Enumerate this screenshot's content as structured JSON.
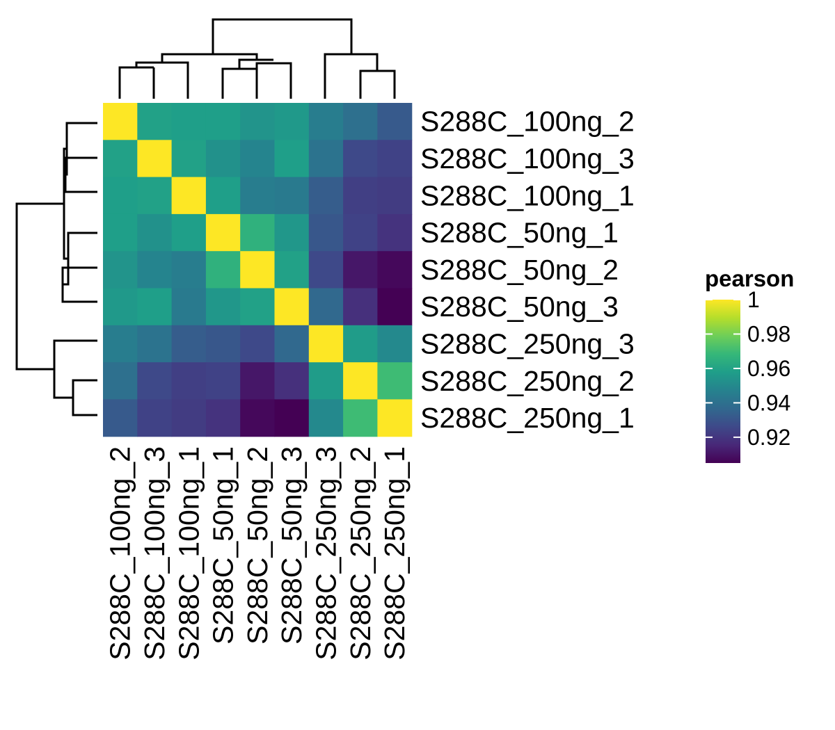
{
  "chart_data": {
    "type": "heatmap",
    "title": "",
    "labels": [
      "S288C_100ng_2",
      "S288C_100ng_3",
      "S288C_100ng_1",
      "S288C_50ng_1",
      "S288C_50ng_2",
      "S288C_50ng_3",
      "S288C_250ng_3",
      "S288C_250ng_2",
      "S288C_250ng_1"
    ],
    "values": [
      [
        1.0,
        0.959,
        0.958,
        0.958,
        0.954,
        0.956,
        0.945,
        0.94,
        0.932
      ],
      [
        0.959,
        1.0,
        0.959,
        0.953,
        0.948,
        0.958,
        0.941,
        0.926,
        0.924
      ],
      [
        0.958,
        0.959,
        1.0,
        0.958,
        0.945,
        0.944,
        0.933,
        0.923,
        0.922
      ],
      [
        0.958,
        0.953,
        0.958,
        1.0,
        0.966,
        0.955,
        0.931,
        0.924,
        0.919
      ],
      [
        0.954,
        0.948,
        0.945,
        0.966,
        1.0,
        0.959,
        0.926,
        0.911,
        0.907
      ],
      [
        0.956,
        0.958,
        0.944,
        0.955,
        0.959,
        1.0,
        0.937,
        0.918,
        0.905
      ],
      [
        0.945,
        0.941,
        0.933,
        0.931,
        0.926,
        0.937,
        1.0,
        0.957,
        0.95
      ],
      [
        0.94,
        0.926,
        0.923,
        0.924,
        0.911,
        0.918,
        0.957,
        1.0,
        0.97
      ],
      [
        0.932,
        0.924,
        0.922,
        0.919,
        0.907,
        0.905,
        0.95,
        0.97,
        1.0
      ]
    ],
    "legend": {
      "title": "pearson",
      "ticks": [
        "1",
        "0.98",
        "0.96",
        "0.94",
        "0.92"
      ],
      "tick_values": [
        1.0,
        0.98,
        0.96,
        0.94,
        0.92
      ],
      "range": [
        0.905,
        1.0
      ]
    },
    "colormap": "viridis",
    "colormap_stops": [
      "#440154",
      "#482878",
      "#3e4989",
      "#31688e",
      "#26828e",
      "#1f9e89",
      "#35b779",
      "#6ece58",
      "#b5de2b",
      "#fde725"
    ],
    "dendrogram": true
  }
}
